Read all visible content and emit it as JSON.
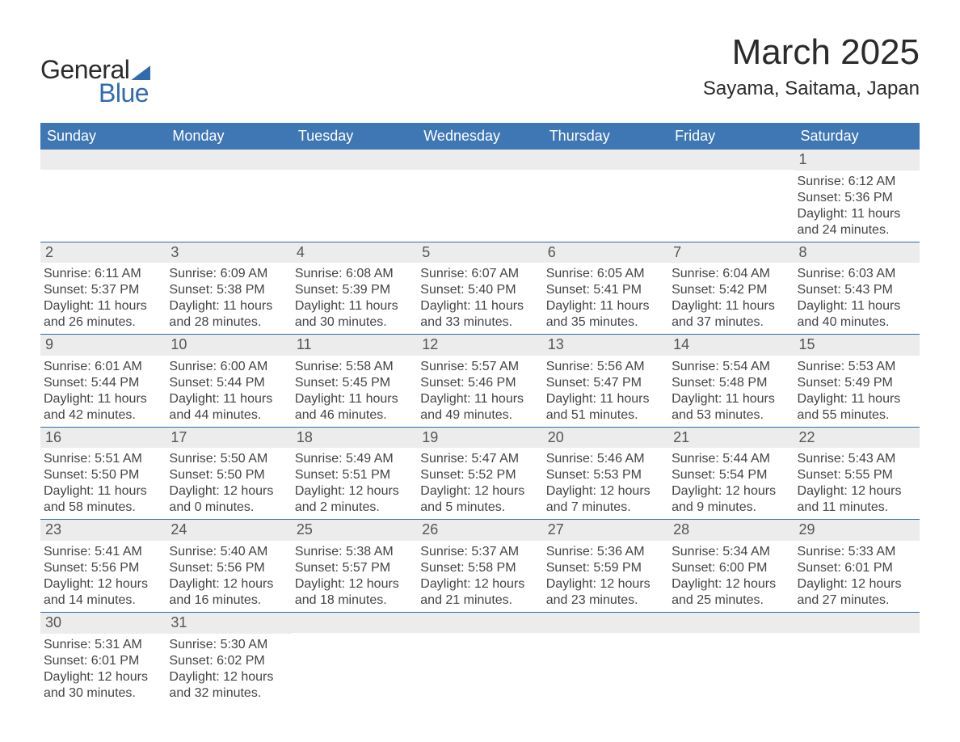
{
  "logo": {
    "word1": "General",
    "word2": "Blue"
  },
  "title": "March 2025",
  "location": "Sayama, Saitama, Japan",
  "colors": {
    "header_bg": "#3f76b4",
    "header_text": "#ffffff",
    "daynum_bg": "#ececec",
    "daynum_text": "#555555",
    "body_text": "#444444",
    "rule": "#2f6bad",
    "logo_accent": "#2f6bad"
  },
  "typography": {
    "title_fontsize": 44,
    "location_fontsize": 24,
    "header_fontsize": 18,
    "daynum_fontsize": 18,
    "details_fontsize": 16
  },
  "day_names": [
    "Sunday",
    "Monday",
    "Tuesday",
    "Wednesday",
    "Thursday",
    "Friday",
    "Saturday"
  ],
  "labels": {
    "sunrise": "Sunrise:",
    "sunset": "Sunset:",
    "daylight": "Daylight:"
  },
  "weeks": [
    [
      {
        "day": "",
        "sunrise": "",
        "sunset": "",
        "daylight": ""
      },
      {
        "day": "",
        "sunrise": "",
        "sunset": "",
        "daylight": ""
      },
      {
        "day": "",
        "sunrise": "",
        "sunset": "",
        "daylight": ""
      },
      {
        "day": "",
        "sunrise": "",
        "sunset": "",
        "daylight": ""
      },
      {
        "day": "",
        "sunrise": "",
        "sunset": "",
        "daylight": ""
      },
      {
        "day": "",
        "sunrise": "",
        "sunset": "",
        "daylight": ""
      },
      {
        "day": "1",
        "sunrise": "6:12 AM",
        "sunset": "5:36 PM",
        "daylight": "11 hours and 24 minutes."
      }
    ],
    [
      {
        "day": "2",
        "sunrise": "6:11 AM",
        "sunset": "5:37 PM",
        "daylight": "11 hours and 26 minutes."
      },
      {
        "day": "3",
        "sunrise": "6:09 AM",
        "sunset": "5:38 PM",
        "daylight": "11 hours and 28 minutes."
      },
      {
        "day": "4",
        "sunrise": "6:08 AM",
        "sunset": "5:39 PM",
        "daylight": "11 hours and 30 minutes."
      },
      {
        "day": "5",
        "sunrise": "6:07 AM",
        "sunset": "5:40 PM",
        "daylight": "11 hours and 33 minutes."
      },
      {
        "day": "6",
        "sunrise": "6:05 AM",
        "sunset": "5:41 PM",
        "daylight": "11 hours and 35 minutes."
      },
      {
        "day": "7",
        "sunrise": "6:04 AM",
        "sunset": "5:42 PM",
        "daylight": "11 hours and 37 minutes."
      },
      {
        "day": "8",
        "sunrise": "6:03 AM",
        "sunset": "5:43 PM",
        "daylight": "11 hours and 40 minutes."
      }
    ],
    [
      {
        "day": "9",
        "sunrise": "6:01 AM",
        "sunset": "5:44 PM",
        "daylight": "11 hours and 42 minutes."
      },
      {
        "day": "10",
        "sunrise": "6:00 AM",
        "sunset": "5:44 PM",
        "daylight": "11 hours and 44 minutes."
      },
      {
        "day": "11",
        "sunrise": "5:58 AM",
        "sunset": "5:45 PM",
        "daylight": "11 hours and 46 minutes."
      },
      {
        "day": "12",
        "sunrise": "5:57 AM",
        "sunset": "5:46 PM",
        "daylight": "11 hours and 49 minutes."
      },
      {
        "day": "13",
        "sunrise": "5:56 AM",
        "sunset": "5:47 PM",
        "daylight": "11 hours and 51 minutes."
      },
      {
        "day": "14",
        "sunrise": "5:54 AM",
        "sunset": "5:48 PM",
        "daylight": "11 hours and 53 minutes."
      },
      {
        "day": "15",
        "sunrise": "5:53 AM",
        "sunset": "5:49 PM",
        "daylight": "11 hours and 55 minutes."
      }
    ],
    [
      {
        "day": "16",
        "sunrise": "5:51 AM",
        "sunset": "5:50 PM",
        "daylight": "11 hours and 58 minutes."
      },
      {
        "day": "17",
        "sunrise": "5:50 AM",
        "sunset": "5:50 PM",
        "daylight": "12 hours and 0 minutes."
      },
      {
        "day": "18",
        "sunrise": "5:49 AM",
        "sunset": "5:51 PM",
        "daylight": "12 hours and 2 minutes."
      },
      {
        "day": "19",
        "sunrise": "5:47 AM",
        "sunset": "5:52 PM",
        "daylight": "12 hours and 5 minutes."
      },
      {
        "day": "20",
        "sunrise": "5:46 AM",
        "sunset": "5:53 PM",
        "daylight": "12 hours and 7 minutes."
      },
      {
        "day": "21",
        "sunrise": "5:44 AM",
        "sunset": "5:54 PM",
        "daylight": "12 hours and 9 minutes."
      },
      {
        "day": "22",
        "sunrise": "5:43 AM",
        "sunset": "5:55 PM",
        "daylight": "12 hours and 11 minutes."
      }
    ],
    [
      {
        "day": "23",
        "sunrise": "5:41 AM",
        "sunset": "5:56 PM",
        "daylight": "12 hours and 14 minutes."
      },
      {
        "day": "24",
        "sunrise": "5:40 AM",
        "sunset": "5:56 PM",
        "daylight": "12 hours and 16 minutes."
      },
      {
        "day": "25",
        "sunrise": "5:38 AM",
        "sunset": "5:57 PM",
        "daylight": "12 hours and 18 minutes."
      },
      {
        "day": "26",
        "sunrise": "5:37 AM",
        "sunset": "5:58 PM",
        "daylight": "12 hours and 21 minutes."
      },
      {
        "day": "27",
        "sunrise": "5:36 AM",
        "sunset": "5:59 PM",
        "daylight": "12 hours and 23 minutes."
      },
      {
        "day": "28",
        "sunrise": "5:34 AM",
        "sunset": "6:00 PM",
        "daylight": "12 hours and 25 minutes."
      },
      {
        "day": "29",
        "sunrise": "5:33 AM",
        "sunset": "6:01 PM",
        "daylight": "12 hours and 27 minutes."
      }
    ],
    [
      {
        "day": "30",
        "sunrise": "5:31 AM",
        "sunset": "6:01 PM",
        "daylight": "12 hours and 30 minutes."
      },
      {
        "day": "31",
        "sunrise": "5:30 AM",
        "sunset": "6:02 PM",
        "daylight": "12 hours and 32 minutes."
      },
      {
        "day": "",
        "sunrise": "",
        "sunset": "",
        "daylight": ""
      },
      {
        "day": "",
        "sunrise": "",
        "sunset": "",
        "daylight": ""
      },
      {
        "day": "",
        "sunrise": "",
        "sunset": "",
        "daylight": ""
      },
      {
        "day": "",
        "sunrise": "",
        "sunset": "",
        "daylight": ""
      },
      {
        "day": "",
        "sunrise": "",
        "sunset": "",
        "daylight": ""
      }
    ]
  ]
}
